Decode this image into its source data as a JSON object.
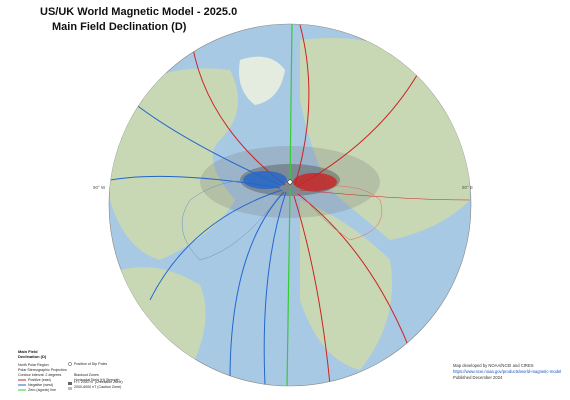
{
  "header": {
    "title": "US/UK World Magnetic Model - 2025.0",
    "subtitle": "Main Field Declination (D)"
  },
  "map": {
    "west_label": "90° W",
    "east_label": "90° E"
  },
  "legend": {
    "title_line1": "Main Field",
    "title_line2": "Declination (D)",
    "left": [
      "North Polar Region",
      "Polar Stereographic Projection",
      "Contour interval: 2 degrees",
      "Positive (east)",
      "Negative (west)",
      "Zero (agonic) line"
    ],
    "right": [
      "Position of Dip Poles",
      "Blackout Zones",
      "Horizontal Field (H) Strength",
      "H < 2000 nT (Unreliable Zone)",
      "2000-6000 nT (Caution Zone)"
    ]
  },
  "credits": [
    "Map developed by NOAA/NCEI and CIRES",
    "https://www.ncei.noaa.gov/products/world-magnetic-model",
    "Published December 2024"
  ]
}
